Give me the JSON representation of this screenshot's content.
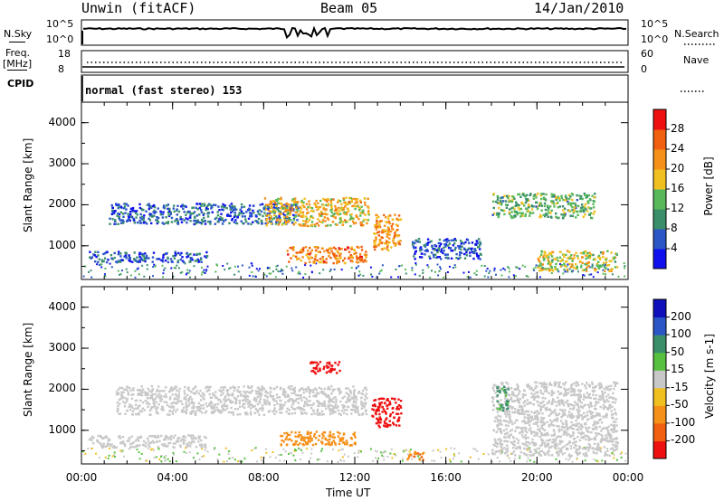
{
  "header": {
    "station": "Unwin (fitACF)",
    "beam": "Beam 05",
    "date": "14/Jan/2010"
  },
  "noise_panel": {
    "left_label": "N.Sky",
    "right_label": "N.Search",
    "ticks_left": [
      "10^5",
      "10^0"
    ],
    "ticks_right": [
      "10^5",
      "10^0"
    ]
  },
  "freq_panel": {
    "left_label_1": "Freq.",
    "left_label_2": "[MHz]",
    "right_label": "Nave",
    "ticks_left": [
      "18",
      "8"
    ],
    "ticks_right": [
      "60",
      "0"
    ]
  },
  "cpid": {
    "label": "CPID",
    "text": "normal (fast stereo) 153"
  },
  "colors": {
    "power": [
      "#1010ee",
      "#2a56c6",
      "#3a8f6a",
      "#58b95a",
      "#f0c020",
      "#f59018",
      "#f06010",
      "#ee1010"
    ],
    "velocity": [
      "#ee1010",
      "#f06010",
      "#f59018",
      "#f0c020",
      "#c8c8c8",
      "#58c040",
      "#3a8f6a",
      "#2a56c6",
      "#1010bb"
    ]
  },
  "chart_data": [
    {
      "type": "heatmap",
      "title": "",
      "xlabel": "",
      "ylabel": "Slant Range [km]",
      "xlim": [
        0,
        24
      ],
      "ylim": [
        180,
        4500
      ],
      "x_ticks": [
        "00:00",
        "04:00",
        "08:00",
        "12:00",
        "16:00",
        "20:00",
        "00:00"
      ],
      "y_ticks": [
        "1000",
        "2000",
        "3000",
        "4000"
      ],
      "colorbar": {
        "label": "Power [dB]",
        "ticks": [
          "4",
          "8",
          "12",
          "16",
          "20",
          "24",
          "28"
        ],
        "range": [
          0,
          30
        ]
      },
      "regions": [
        {
          "x": [
            1.2,
            9.5
          ],
          "y": [
            1550,
            2050
          ],
          "value": 6
        },
        {
          "x": [
            8.0,
            12.6
          ],
          "y": [
            1500,
            2200
          ],
          "value": 18
        },
        {
          "x": [
            9.0,
            12.5
          ],
          "y": [
            600,
            1000
          ],
          "value": 22
        },
        {
          "x": [
            12.8,
            14.0
          ],
          "y": [
            900,
            1800
          ],
          "value": 20
        },
        {
          "x": [
            0.3,
            5.5
          ],
          "y": [
            620,
            880
          ],
          "value": 6
        },
        {
          "x": [
            18.0,
            22.5
          ],
          "y": [
            1700,
            2300
          ],
          "value": 12
        },
        {
          "x": [
            20.0,
            23.5
          ],
          "y": [
            400,
            900
          ],
          "value": 16
        },
        {
          "x": [
            14.5,
            17.5
          ],
          "y": [
            700,
            1200
          ],
          "value": 5
        }
      ]
    },
    {
      "type": "heatmap",
      "title": "",
      "xlabel": "Time UT",
      "ylabel": "Slant Range [km]",
      "xlim": [
        0,
        24
      ],
      "ylim": [
        180,
        4500
      ],
      "x_ticks": [
        "00:00",
        "04:00",
        "08:00",
        "12:00",
        "16:00",
        "20:00",
        "00:00"
      ],
      "y_ticks": [
        "1000",
        "2000",
        "3000",
        "4000"
      ],
      "colorbar": {
        "label": "Velocity [m s-1]",
        "ticks": [
          "200",
          "100",
          "50",
          "15",
          "-15",
          "-50",
          "-100",
          "-200"
        ],
        "range": [
          -250,
          250
        ]
      },
      "regions": [
        {
          "x": [
            1.5,
            12.5
          ],
          "y": [
            1400,
            2100
          ],
          "value": 0
        },
        {
          "x": [
            8.7,
            12.0
          ],
          "y": [
            650,
            1000
          ],
          "value": -60
        },
        {
          "x": [
            12.7,
            14.0
          ],
          "y": [
            1100,
            1800
          ],
          "value": -180
        },
        {
          "x": [
            10.0,
            11.3
          ],
          "y": [
            2400,
            2700
          ],
          "value": -200
        },
        {
          "x": [
            0.3,
            5.5
          ],
          "y": [
            600,
            900
          ],
          "value": 0
        },
        {
          "x": [
            18.0,
            23.5
          ],
          "y": [
            400,
            2200
          ],
          "value": 0
        },
        {
          "x": [
            14.2,
            15.0
          ],
          "y": [
            300,
            500
          ],
          "value": -70
        },
        {
          "x": [
            18.2,
            18.7
          ],
          "y": [
            1500,
            2100
          ],
          "value": 60
        }
      ]
    }
  ]
}
